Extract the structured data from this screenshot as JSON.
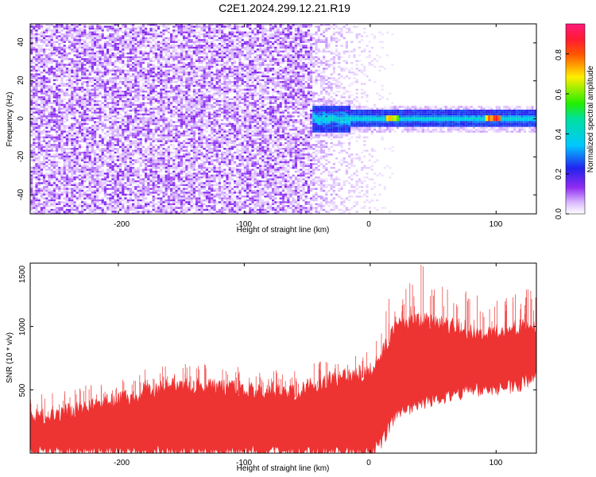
{
  "figure": {
    "title": "C2E1.2024.299.12.21.R19"
  },
  "chart_data": [
    {
      "type": "heatmap",
      "xlabel": "Height of straight line (km)",
      "ylabel": "Frequency (Hz)",
      "xlim": [
        -270,
        132
      ],
      "ylim": [
        -50,
        50
      ],
      "x_ticks": [
        "-200",
        "-100",
        "0",
        "100"
      ],
      "y_ticks": [
        "-40",
        "-20",
        "0",
        "20",
        "40"
      ],
      "colorbar": {
        "label": "Normalized spectral amplitude",
        "range": [
          0,
          0.95
        ],
        "ticks": [
          "0.0",
          "0.2",
          "0.4",
          "0.6",
          "0.8"
        ],
        "colormap": "rainbow (white→purple→blue→cyan→green→yellow→red→magenta)"
      },
      "features": {
        "noise_region_x": [
          -270,
          -45
        ],
        "noise_amplitude": 0.1,
        "fade_region_x": [
          -45,
          18
        ],
        "signal_start_x": -45,
        "signal_line_freq": 0,
        "signal_line_amplitude": 0.45,
        "signal_hotspots": [
          {
            "x": 15,
            "amplitude": 0.8
          },
          {
            "x": 20,
            "amplitude": 0.7
          },
          {
            "x": 95,
            "amplitude": 0.85
          },
          {
            "x": 100,
            "amplitude": 0.95
          }
        ]
      },
      "grid": false
    },
    {
      "type": "area",
      "xlabel": "Height of straight line (km)",
      "ylabel": "SNR (10 * v/v)",
      "xlim": [
        -270,
        132
      ],
      "ylim": [
        0,
        1500
      ],
      "x_ticks": [
        "-200",
        "-100",
        "0",
        "100"
      ],
      "y_ticks": [
        "500",
        "1000",
        "1500"
      ],
      "color": "#ee3333",
      "series": [
        {
          "x": [
            -270,
            -250,
            -230,
            -200,
            -180,
            -160,
            -140,
            -120,
            -100,
            -80,
            -60,
            -40,
            -20,
            0,
            10,
            20,
            40,
            60,
            80,
            100,
            120,
            132
          ],
          "lower": [
            0,
            0,
            0,
            0,
            0,
            0,
            0,
            0,
            0,
            0,
            0,
            0,
            0,
            0,
            100,
            300,
            400,
            450,
            500,
            500,
            550,
            600
          ],
          "upper": [
            280,
            300,
            350,
            420,
            480,
            520,
            530,
            520,
            500,
            490,
            480,
            560,
            600,
            650,
            800,
            1000,
            1050,
            1020,
            950,
            950,
            1000,
            1000
          ],
          "peak_max": 1500
        }
      ],
      "grid": false
    }
  ]
}
